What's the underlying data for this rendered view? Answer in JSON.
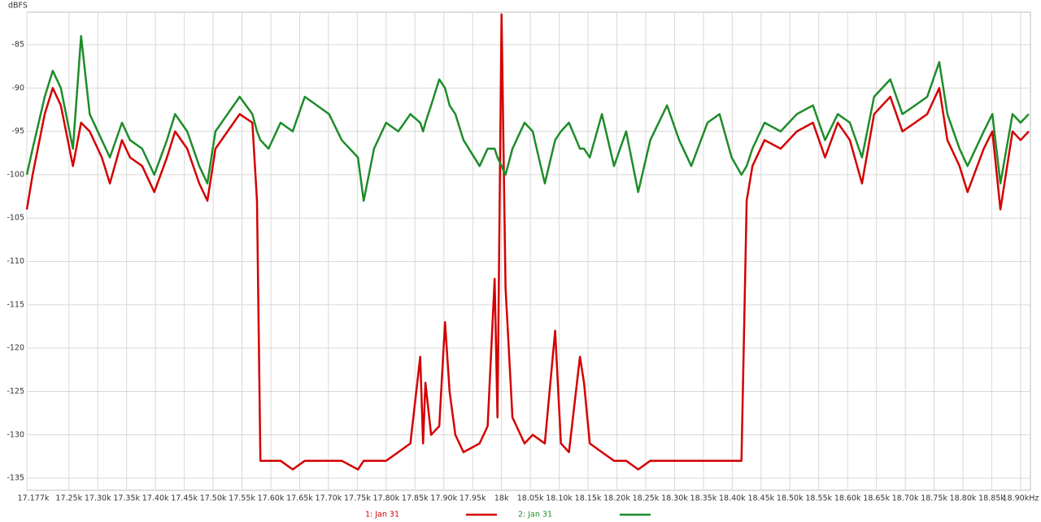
{
  "chart_data": {
    "type": "line",
    "y_label": "dBFS",
    "x": [
      17177,
      17187,
      17208,
      17222,
      17236,
      17257,
      17271,
      17286,
      17307,
      17321,
      17342,
      17356,
      17377,
      17398,
      17420,
      17434,
      17455,
      17476,
      17490,
      17504,
      17525,
      17546,
      17568,
      17576,
      17582,
      17596,
      17617,
      17638,
      17659,
      17680,
      17701,
      17723,
      17751,
      17761,
      17779,
      17800,
      17821,
      17842,
      17859,
      17864,
      17868,
      17878,
      17892,
      17902,
      17910,
      17920,
      17934,
      17962,
      17976,
      17988,
      17993,
      18000,
      18007,
      18019,
      18040,
      18054,
      18075,
      18093,
      18103,
      18117,
      18136,
      18143,
      18153,
      18174,
      18195,
      18216,
      18237,
      18258,
      18287,
      18308,
      18329,
      18357,
      18378,
      18399,
      18416,
      18425,
      18435,
      18456,
      18484,
      18512,
      18540,
      18561,
      18583,
      18604,
      18625,
      18646,
      18674,
      18695,
      18717,
      18738,
      18759,
      18773,
      18794,
      18808,
      18836,
      18851,
      18865,
      18886,
      18900,
      18914
    ],
    "series": [
      {
        "name": "1: Jan 31",
        "color": "#d40000",
        "values": [
          -104,
          -100,
          -93,
          -90,
          -92,
          -99,
          -94,
          -95,
          -98,
          -101,
          -96,
          -98,
          -99,
          -102,
          -98,
          -95,
          -97,
          -101,
          -103,
          -97,
          -95,
          -93,
          -94,
          -103,
          -133,
          -133,
          -133,
          -134,
          -133,
          -133,
          -133,
          -133,
          -134,
          -133,
          -133,
          -133,
          -132,
          -131,
          -121,
          -131,
          -124,
          -130,
          -129,
          -117,
          -125,
          -130,
          -132,
          -131,
          -129,
          -112,
          -128,
          -81.5,
          -113,
          -128,
          -131,
          -130,
          -131,
          -118,
          -131,
          -132,
          -121,
          -124,
          -131,
          -132,
          -133,
          -133,
          -134,
          -133,
          -133,
          -133,
          -133,
          -133,
          -133,
          -133,
          -133,
          -103,
          -99,
          -96,
          -97,
          -95,
          -94,
          -98,
          -94,
          -96,
          -101,
          -93,
          -91,
          -95,
          -94,
          -93,
          -90,
          -96,
          -99,
          -102,
          -97,
          -95,
          -104,
          -95,
          -96,
          -95
        ]
      },
      {
        "name": "2: Jan 31",
        "color": "#1e8c2a",
        "values": [
          -100,
          -97,
          -91,
          -88,
          -90,
          -97,
          -84,
          -93,
          -96,
          -98,
          -94,
          -96,
          -97,
          -100,
          -96,
          -93,
          -95,
          -99,
          -101,
          -95,
          -93,
          -91,
          -93,
          -95,
          -96,
          -97,
          -94,
          -95,
          -91,
          -92,
          -93,
          -96,
          -98,
          -103,
          -97,
          -94,
          -95,
          -93,
          -94,
          -95,
          -94,
          -92,
          -89,
          -90,
          -92,
          -93,
          -96,
          -99,
          -97,
          -97,
          -98,
          -99,
          -100,
          -97,
          -94,
          -95,
          -101,
          -96,
          -95,
          -94,
          -97,
          -97,
          -98,
          -93,
          -99,
          -95,
          -102,
          -96,
          -92,
          -96,
          -99,
          -94,
          -93,
          -98,
          -100,
          -99,
          -97,
          -94,
          -95,
          -93,
          -92,
          -96,
          -93,
          -94,
          -98,
          -91,
          -89,
          -93,
          -92,
          -91,
          -87,
          -93,
          -97,
          -99,
          -95,
          -93,
          -101,
          -93,
          -94,
          -93
        ]
      }
    ],
    "xlim": [
      17177,
      18917
    ],
    "xticks": [
      {
        "value": 17177,
        "label": "17.177k"
      },
      {
        "value": 17250,
        "label": "17.25k"
      },
      {
        "value": 17300,
        "label": "17.30k"
      },
      {
        "value": 17350,
        "label": "17.35k"
      },
      {
        "value": 17400,
        "label": "17.40k"
      },
      {
        "value": 17450,
        "label": "17.45k"
      },
      {
        "value": 17500,
        "label": "17.50k"
      },
      {
        "value": 17550,
        "label": "17.55k"
      },
      {
        "value": 17600,
        "label": "17.60k"
      },
      {
        "value": 17650,
        "label": "17.65k"
      },
      {
        "value": 17700,
        "label": "17.70k"
      },
      {
        "value": 17750,
        "label": "17.75k"
      },
      {
        "value": 17800,
        "label": "17.80k"
      },
      {
        "value": 17850,
        "label": "17.85k"
      },
      {
        "value": 17900,
        "label": "17.90k"
      },
      {
        "value": 17950,
        "label": "17.95k"
      },
      {
        "value": 18000,
        "label": "18k"
      },
      {
        "value": 18050,
        "label": "18.05k"
      },
      {
        "value": 18100,
        "label": "18.10k"
      },
      {
        "value": 18150,
        "label": "18.15k"
      },
      {
        "value": 18200,
        "label": "18.20k"
      },
      {
        "value": 18250,
        "label": "18.25k"
      },
      {
        "value": 18300,
        "label": "18.30k"
      },
      {
        "value": 18350,
        "label": "18.35k"
      },
      {
        "value": 18400,
        "label": "18.40k"
      },
      {
        "value": 18450,
        "label": "18.45k"
      },
      {
        "value": 18500,
        "label": "18.50k"
      },
      {
        "value": 18550,
        "label": "18.55k"
      },
      {
        "value": 18600,
        "label": "18.60k"
      },
      {
        "value": 18650,
        "label": "18.65k"
      },
      {
        "value": 18700,
        "label": "18.70k"
      },
      {
        "value": 18750,
        "label": "18.75k"
      },
      {
        "value": 18800,
        "label": "18.80k"
      },
      {
        "value": 18850,
        "label": "18.85k"
      },
      {
        "value": 18900,
        "label": "18.90kHz"
      }
    ],
    "ylim": [
      -136.4,
      -81.25
    ],
    "yticks": [
      -85,
      -90,
      -95,
      -100,
      -105,
      -110,
      -115,
      -120,
      -125,
      -130,
      -135
    ],
    "grid": true
  }
}
